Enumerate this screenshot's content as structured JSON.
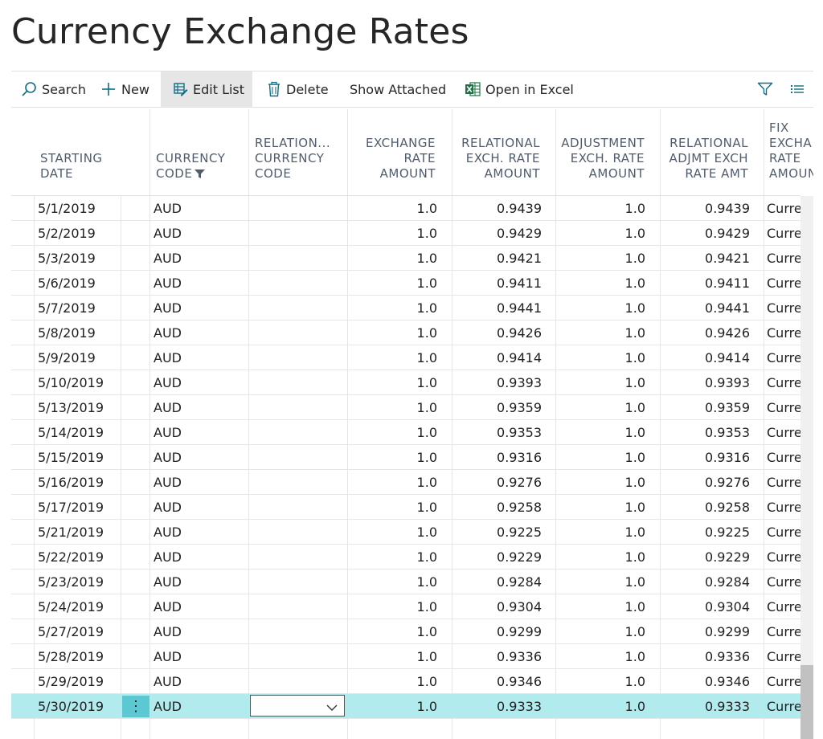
{
  "page": {
    "title": "Currency Exchange Rates"
  },
  "actions": [
    {
      "label": "Search",
      "icon": "search-icon"
    },
    {
      "label": "New",
      "icon": "plus-icon"
    },
    {
      "label": "Edit List",
      "icon": "edit-list-icon"
    },
    {
      "label": "Delete",
      "icon": "trash-icon"
    },
    {
      "label": "Show Attached",
      "icon": ""
    },
    {
      "label": "Open in Excel",
      "icon": "excel-icon"
    }
  ],
  "tools": {
    "filter_icon": "filter-icon",
    "list_icon": "list-view-icon"
  },
  "columns": [
    {
      "label": "STARTING\nDATE"
    },
    {
      "label": "CURRENCY\nCODE"
    },
    {
      "label": "RELATION...\nCURRENCY\nCODE"
    },
    {
      "label": "EXCHANGE\nRATE\nAMOUNT"
    },
    {
      "label": "RELATIONAL\nEXCH. RATE\nAMOUNT"
    },
    {
      "label": "ADJUSTMENT\nEXCH. RATE\nAMOUNT"
    },
    {
      "label": "RELATIONAL\nADJMT EXCH\nRATE AMT"
    },
    {
      "label": "FIX\nEXCHA\nRATE\nAMOUN"
    }
  ],
  "rows": [
    {
      "date": "5/1/2019",
      "code": "AUD",
      "rel_code": "",
      "rate": "1.0",
      "rel_rate": "0.9439",
      "adj_rate": "1.0",
      "rel_adj": "0.9439",
      "fix": "Curre"
    },
    {
      "date": "5/2/2019",
      "code": "AUD",
      "rel_code": "",
      "rate": "1.0",
      "rel_rate": "0.9429",
      "adj_rate": "1.0",
      "rel_adj": "0.9429",
      "fix": "Curre"
    },
    {
      "date": "5/3/2019",
      "code": "AUD",
      "rel_code": "",
      "rate": "1.0",
      "rel_rate": "0.9421",
      "adj_rate": "1.0",
      "rel_adj": "0.9421",
      "fix": "Curre"
    },
    {
      "date": "5/6/2019",
      "code": "AUD",
      "rel_code": "",
      "rate": "1.0",
      "rel_rate": "0.9411",
      "adj_rate": "1.0",
      "rel_adj": "0.9411",
      "fix": "Curre"
    },
    {
      "date": "5/7/2019",
      "code": "AUD",
      "rel_code": "",
      "rate": "1.0",
      "rel_rate": "0.9441",
      "adj_rate": "1.0",
      "rel_adj": "0.9441",
      "fix": "Curre"
    },
    {
      "date": "5/8/2019",
      "code": "AUD",
      "rel_code": "",
      "rate": "1.0",
      "rel_rate": "0.9426",
      "adj_rate": "1.0",
      "rel_adj": "0.9426",
      "fix": "Curre"
    },
    {
      "date": "5/9/2019",
      "code": "AUD",
      "rel_code": "",
      "rate": "1.0",
      "rel_rate": "0.9414",
      "adj_rate": "1.0",
      "rel_adj": "0.9414",
      "fix": "Curre"
    },
    {
      "date": "5/10/2019",
      "code": "AUD",
      "rel_code": "",
      "rate": "1.0",
      "rel_rate": "0.9393",
      "adj_rate": "1.0",
      "rel_adj": "0.9393",
      "fix": "Curre"
    },
    {
      "date": "5/13/2019",
      "code": "AUD",
      "rel_code": "",
      "rate": "1.0",
      "rel_rate": "0.9359",
      "adj_rate": "1.0",
      "rel_adj": "0.9359",
      "fix": "Curre"
    },
    {
      "date": "5/14/2019",
      "code": "AUD",
      "rel_code": "",
      "rate": "1.0",
      "rel_rate": "0.9353",
      "adj_rate": "1.0",
      "rel_adj": "0.9353",
      "fix": "Curre"
    },
    {
      "date": "5/15/2019",
      "code": "AUD",
      "rel_code": "",
      "rate": "1.0",
      "rel_rate": "0.9316",
      "adj_rate": "1.0",
      "rel_adj": "0.9316",
      "fix": "Curre"
    },
    {
      "date": "5/16/2019",
      "code": "AUD",
      "rel_code": "",
      "rate": "1.0",
      "rel_rate": "0.9276",
      "adj_rate": "1.0",
      "rel_adj": "0.9276",
      "fix": "Curre"
    },
    {
      "date": "5/17/2019",
      "code": "AUD",
      "rel_code": "",
      "rate": "1.0",
      "rel_rate": "0.9258",
      "adj_rate": "1.0",
      "rel_adj": "0.9258",
      "fix": "Curre"
    },
    {
      "date": "5/21/2019",
      "code": "AUD",
      "rel_code": "",
      "rate": "1.0",
      "rel_rate": "0.9225",
      "adj_rate": "1.0",
      "rel_adj": "0.9225",
      "fix": "Curre"
    },
    {
      "date": "5/22/2019",
      "code": "AUD",
      "rel_code": "",
      "rate": "1.0",
      "rel_rate": "0.9229",
      "adj_rate": "1.0",
      "rel_adj": "0.9229",
      "fix": "Curre"
    },
    {
      "date": "5/23/2019",
      "code": "AUD",
      "rel_code": "",
      "rate": "1.0",
      "rel_rate": "0.9284",
      "adj_rate": "1.0",
      "rel_adj": "0.9284",
      "fix": "Curre"
    },
    {
      "date": "5/24/2019",
      "code": "AUD",
      "rel_code": "",
      "rate": "1.0",
      "rel_rate": "0.9304",
      "adj_rate": "1.0",
      "rel_adj": "0.9304",
      "fix": "Curre"
    },
    {
      "date": "5/27/2019",
      "code": "AUD",
      "rel_code": "",
      "rate": "1.0",
      "rel_rate": "0.9299",
      "adj_rate": "1.0",
      "rel_adj": "0.9299",
      "fix": "Curre"
    },
    {
      "date": "5/28/2019",
      "code": "AUD",
      "rel_code": "",
      "rate": "1.0",
      "rel_rate": "0.9336",
      "adj_rate": "1.0",
      "rel_adj": "0.9336",
      "fix": "Curre"
    },
    {
      "date": "5/29/2019",
      "code": "AUD",
      "rel_code": "",
      "rate": "1.0",
      "rel_rate": "0.9346",
      "adj_rate": "1.0",
      "rel_adj": "0.9346",
      "fix": "Curre"
    },
    {
      "date": "5/30/2019",
      "code": "AUD",
      "rel_code": "",
      "rate": "1.0",
      "rel_rate": "0.9333",
      "adj_rate": "1.0",
      "rel_adj": "0.9333",
      "fix": "Curre",
      "selected": true
    }
  ],
  "colors": {
    "selected_row": "#b2ebee",
    "row_action": "#5cc8d2",
    "accent": "#0d6e86",
    "excel": "#1e7145"
  }
}
